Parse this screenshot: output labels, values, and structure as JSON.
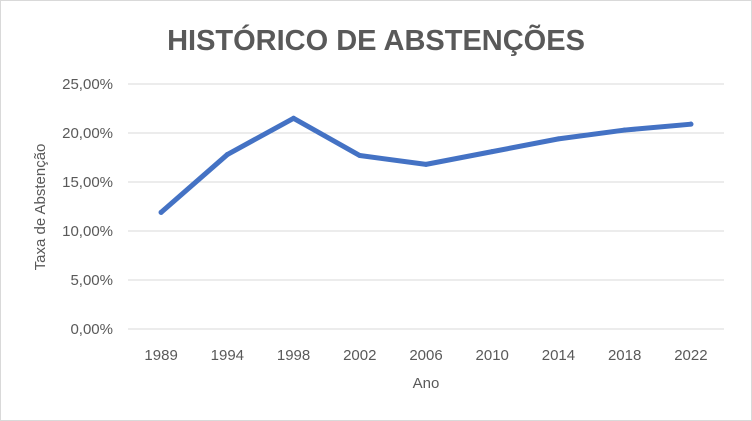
{
  "chart_data": {
    "type": "line",
    "title": "HISTÓRICO DE ABSTENÇÕES",
    "xlabel": "Ano",
    "ylabel": "Taxa de Abstenção",
    "categories": [
      "1989",
      "1994",
      "1998",
      "2002",
      "2006",
      "2010",
      "2014",
      "2018",
      "2022"
    ],
    "series": [
      {
        "values": [
          11.9,
          17.8,
          21.5,
          17.7,
          16.8,
          18.1,
          19.4,
          20.3,
          20.9
        ],
        "color": "#4472c4"
      }
    ],
    "ylim": [
      0,
      25
    ],
    "yticks": [
      0,
      5,
      10,
      15,
      20,
      25
    ],
    "ytick_labels": [
      "0,00%",
      "5,00%",
      "10,00%",
      "15,00%",
      "20,00%",
      "25,00%"
    ],
    "grid": true,
    "legend": "none"
  }
}
